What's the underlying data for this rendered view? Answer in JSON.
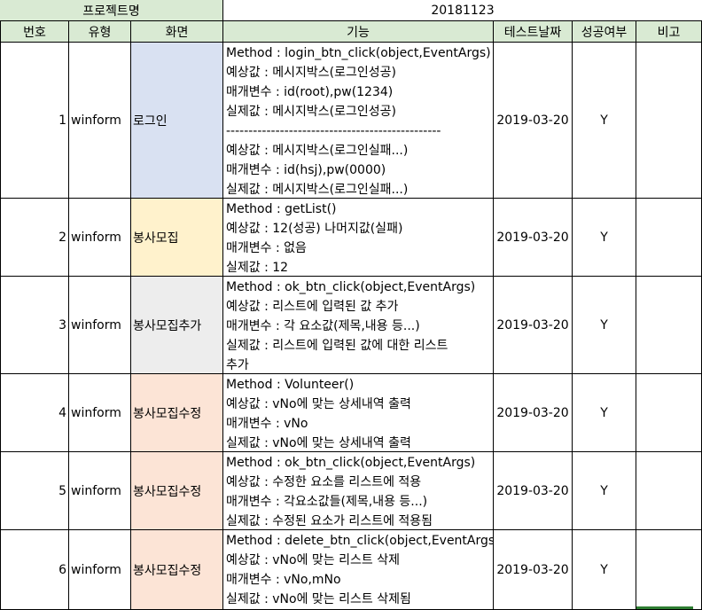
{
  "project": {
    "label": "프로젝트명",
    "value": "20181123"
  },
  "headers": [
    "번호",
    "유형",
    "화면",
    "기능",
    "테스트날짜",
    "성공여부",
    "비고"
  ],
  "colors": {
    "header_bg": "#d9ead3",
    "screen_login": "#d9e1f2",
    "screen_recruit": "#fff2cc",
    "screen_add": "#ededed",
    "screen_edit": "#fce4d6"
  },
  "rows": [
    {
      "no": "1",
      "type": "winform",
      "screen": "로그인",
      "lines": [
        "Method : login_btn_click(object,EventArgs)",
        "예상값 : 메시지박스(로그인성공)",
        "매개변수 : id(root),pw(1234)",
        "실제값 : 메시지박스(로그인성공)",
        "------------------------------------------------",
        "예상값 : 메시지박스(로그인실패...)",
        "매개변수 : id(hsj),pw(0000)",
        "실제값 : 메시지박스(로그인실패...)"
      ],
      "date": "2019-03-20",
      "success": "Y",
      "note": ""
    },
    {
      "no": "2",
      "type": "winform",
      "screen": "봉사모집",
      "lines": [
        "Method : getList()",
        "예상값 : 12(성공) 나머지값(실패)",
        "매개변수 : 없음",
        "실제값 : 12"
      ],
      "date": "2019-03-20",
      "success": "Y",
      "note": ""
    },
    {
      "no": "3",
      "type": "winform",
      "screen": "봉사모집추가",
      "lines": [
        "Method : ok_btn_click(object,EventArgs)",
        "예상값 : 리스트에 입력된 값 추가",
        "매개변수 : 각 요소값(제목,내용 등...)",
        "실제값 : 리스트에 입력된 값에 대한 리스트",
        "추가"
      ],
      "date": "2019-03-20",
      "success": "Y",
      "note": ""
    },
    {
      "no": "4",
      "type": "winform",
      "screen": "봉사모집수정",
      "lines": [
        "Method : Volunteer()",
        "예상값 : vNo에 맞는 상세내역 출력",
        "매개변수 : vNo",
        "실제값 : vNo에 맞는 상세내역 출력"
      ],
      "date": "2019-03-20",
      "success": "Y",
      "note": ""
    },
    {
      "no": "5",
      "type": "winform",
      "screen": "봉사모집수정",
      "lines": [
        "Method : ok_btn_click(object,EventArgs)",
        "예상값 : 수정한 요소를 리스트에 적용",
        "매개변수 : 각요소값들(제목,내용 등...)",
        "실제값 : 수정된 요소가 리스트에 적용됨"
      ],
      "date": "2019-03-20",
      "success": "Y",
      "note": ""
    },
    {
      "no": "6",
      "type": "winform",
      "screen": "봉사모집수정",
      "lines": [
        "Method : delete_btn_click(object,EventArgs)",
        "예상값 : vNo에 맞는 리스트 삭제",
        "매개변수 : vNo,mNo",
        "실제값 : vNo에 맞는 리스트 삭제됨"
      ],
      "date": "2019-03-20",
      "success": "Y",
      "note": ""
    }
  ]
}
